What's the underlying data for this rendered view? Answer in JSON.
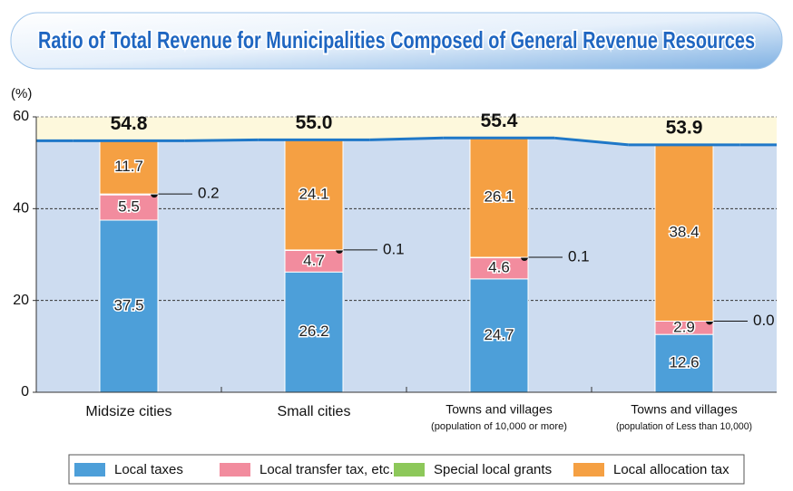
{
  "chart_data": {
    "type": "stacked_bar",
    "title": "Ratio of Total Revenue for Municipalities Composed of General Revenue Resources",
    "y_unit": "(%)",
    "categories": [
      "Midsize cities",
      "Small cities",
      "Towns and villages",
      "Towns and villages"
    ],
    "category_notes": [
      null,
      null,
      "(population of 10,000 or more)",
      "(population of Less than 10,000)"
    ],
    "series": [
      {
        "name": "Local taxes",
        "color": "#4d9fd9",
        "values": [
          37.5,
          26.2,
          24.7,
          12.6
        ]
      },
      {
        "name": "Local transfer tax, etc.",
        "color": "#f28c9e",
        "values": [
          5.5,
          4.7,
          4.6,
          2.9
        ]
      },
      {
        "name": "Special local grants",
        "color": "#8dc85a",
        "values": [
          0.2,
          0.1,
          0.1,
          0.0
        ],
        "value_labels": [
          "0.2",
          "0.1",
          "0.1",
          "0.0"
        ]
      },
      {
        "name": "Local allocation tax",
        "color": "#f5a043",
        "values": [
          11.7,
          24.1,
          26.1,
          38.4
        ]
      }
    ],
    "totals": [
      54.8,
      55,
      55.4,
      53.9
    ],
    "total_labels": [
      "54.8",
      "55.0",
      "55.4",
      "53.9"
    ],
    "total_color": "#1f78c8",
    "ylim": [
      0,
      60
    ],
    "yticks": [
      0,
      20,
      40,
      60
    ],
    "grid": true
  }
}
